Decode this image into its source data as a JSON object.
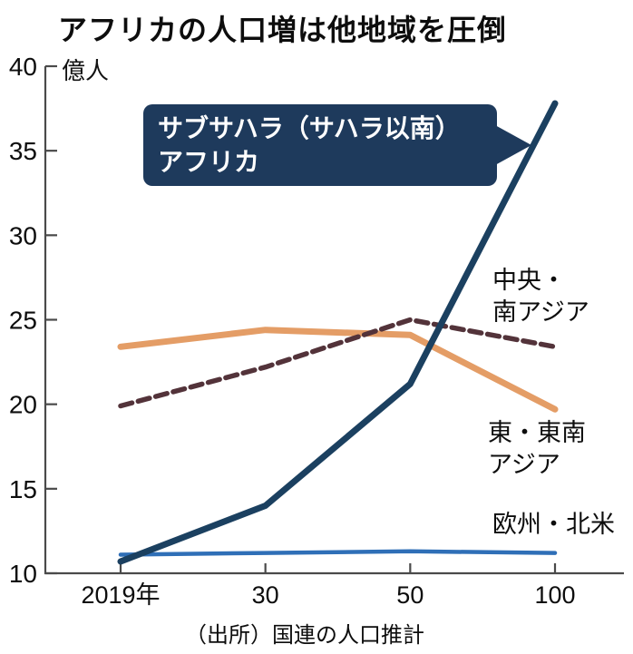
{
  "title": "アフリカの人口増は他地域を圧倒",
  "unit_label": "億人",
  "source": "（出所）国連の人口推計",
  "callout": {
    "line1": "サブサハラ（サハラ以南）",
    "line2": "アフリカ",
    "bg_color": "#1e3a5c"
  },
  "annotations": {
    "central_south_asia": {
      "line1": "中央・",
      "line2": "南アジア"
    },
    "east_southeast_asia": {
      "line1": "東・東南",
      "line2": "アジア"
    },
    "europe_north_america": {
      "line1": "欧州・北米"
    }
  },
  "chart_data": {
    "type": "line",
    "title": "アフリカの人口増は他地域を圧倒",
    "x_labels": [
      "2019年",
      "30",
      "50",
      "100"
    ],
    "x_years": [
      2019,
      2030,
      2050,
      2100
    ],
    "ylabel": "億人",
    "ylim": [
      10,
      40
    ],
    "yticks": [
      40,
      35,
      30,
      25,
      20,
      15,
      10
    ],
    "grid": false,
    "legend_position": "inline-annotations",
    "axis_color": "#4a4a4a",
    "series": [
      {
        "id": "east-southeast-asia",
        "name": "東・東南アジア",
        "values": [
          23.4,
          24.4,
          24.1,
          19.7
        ],
        "color": "#e49d66",
        "style": "solid",
        "width": 7
      },
      {
        "id": "central-south-asia",
        "name": "中央・南アジア",
        "values": [
          19.9,
          22.2,
          25.0,
          23.4
        ],
        "color": "#53333a",
        "style": "dashed",
        "width": 5.5
      },
      {
        "id": "europe-north-america",
        "name": "欧州・北米",
        "values": [
          11.1,
          11.2,
          11.3,
          11.2
        ],
        "color": "#2f6fb7",
        "style": "solid",
        "width": 4.5
      },
      {
        "id": "sub-saharan-africa",
        "name": "サブサハラ（サハラ以南）アフリカ",
        "values": [
          10.7,
          14.0,
          21.2,
          37.8
        ],
        "color": "#1b4060",
        "style": "solid",
        "width": 7
      }
    ]
  }
}
